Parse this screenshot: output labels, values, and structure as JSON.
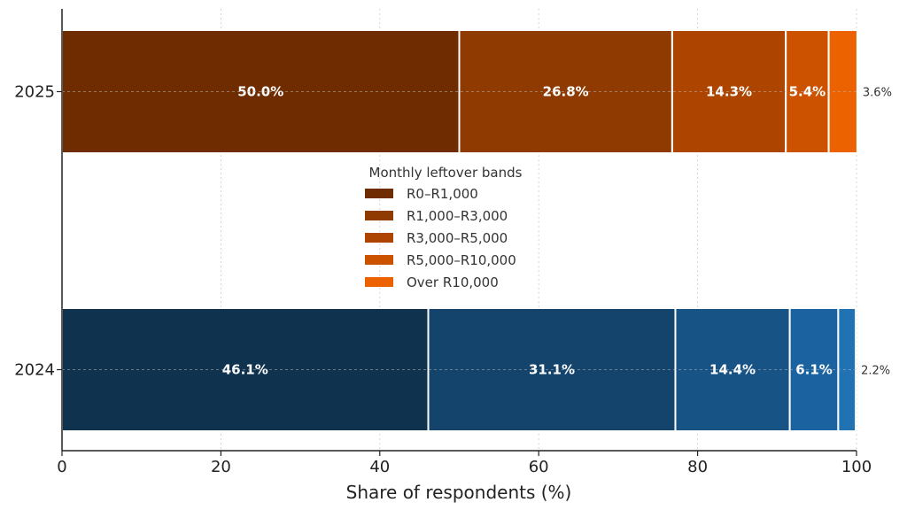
{
  "chart_data": {
    "type": "bar",
    "orientation": "horizontal",
    "stacked": true,
    "categories": [
      "2025",
      "2024"
    ],
    "series": [
      {
        "name": "R0–R1,000",
        "values": [
          50.0,
          46.1
        ],
        "labels": [
          "50.0%",
          "46.1%"
        ]
      },
      {
        "name": "R1,000–R3,000",
        "values": [
          26.8,
          31.1
        ],
        "labels": [
          "26.8%",
          "31.1%"
        ]
      },
      {
        "name": "R3,000–R5,000",
        "values": [
          14.3,
          14.4
        ],
        "labels": [
          "14.3%",
          "14.4%"
        ]
      },
      {
        "name": "R5,000–R10,000",
        "values": [
          5.4,
          6.1
        ],
        "labels": [
          "5.4%",
          "6.1%"
        ]
      },
      {
        "name": "Over R10,000",
        "values": [
          3.6,
          2.2
        ],
        "labels": [
          "3.6%",
          "2.2%"
        ]
      }
    ],
    "colors": {
      "2025": [
        "#6e2c00",
        "#8e3a00",
        "#ad4500",
        "#cc5200",
        "#ec6100"
      ],
      "2024": [
        "#0f334f",
        "#14446b",
        "#175384",
        "#1a63a0",
        "#2072b2"
      ],
      "legend": [
        "#6e2c00",
        "#8e3a00",
        "#ad4500",
        "#cc5200",
        "#ec6100"
      ]
    },
    "xlabel": "Share of respondents (%)",
    "ylabel": "",
    "xlim": [
      0,
      100
    ],
    "xticks": [
      0,
      20,
      40,
      60,
      80,
      100
    ],
    "xtick_labels": [
      "0",
      "20",
      "40",
      "60",
      "80",
      "100"
    ],
    "grid": {
      "x": true,
      "y": true,
      "style": "dashed"
    },
    "legend": {
      "title": "Monthly leftover bands",
      "placement": "center"
    },
    "label_position": {
      "2025": [
        "inside",
        "inside",
        "inside",
        "inside",
        "outside"
      ],
      "2024": [
        "inside",
        "inside",
        "inside",
        "inside",
        "outside"
      ]
    }
  }
}
